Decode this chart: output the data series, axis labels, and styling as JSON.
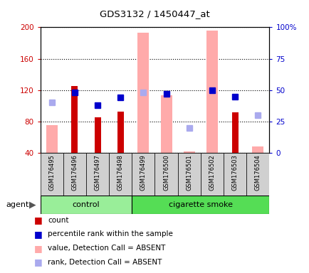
{
  "title": "GDS3132 / 1450447_at",
  "samples": [
    "GSM176495",
    "GSM176496",
    "GSM176497",
    "GSM176498",
    "GSM176499",
    "GSM176500",
    "GSM176501",
    "GSM176502",
    "GSM176503",
    "GSM176504"
  ],
  "count": [
    null,
    125,
    85,
    93,
    null,
    null,
    null,
    null,
    92,
    null
  ],
  "percentile_rank": [
    null,
    48,
    38,
    44,
    null,
    47,
    null,
    50,
    45,
    null
  ],
  "value_absent": [
    75,
    null,
    null,
    null,
    193,
    113,
    42,
    196,
    null,
    48
  ],
  "rank_absent": [
    40,
    null,
    null,
    null,
    48,
    null,
    20,
    null,
    null,
    30
  ],
  "ylim_left": [
    40,
    200
  ],
  "ylim_right": [
    0,
    100
  ],
  "yticks_left": [
    40,
    80,
    120,
    160,
    200
  ],
  "yticks_right": [
    0,
    25,
    50,
    75,
    100
  ],
  "yticklabels_right": [
    "0",
    "25",
    "50",
    "75",
    "100%"
  ],
  "left_color": "#cc0000",
  "right_color": "#0000cc",
  "absent_bar_color": "#ffaaaa",
  "absent_dot_color": "#aaaaee",
  "control_green": "#99ee99",
  "smoke_green": "#55dd55",
  "agent_label": "agent",
  "group_label_control": "control",
  "group_label_smoke": "cigarette smoke",
  "legend": [
    {
      "color": "#cc0000",
      "label": "count"
    },
    {
      "color": "#0000cc",
      "label": "percentile rank within the sample"
    },
    {
      "color": "#ffaaaa",
      "label": "value, Detection Call = ABSENT"
    },
    {
      "color": "#aaaaee",
      "label": "rank, Detection Call = ABSENT"
    }
  ],
  "n_control": 4,
  "n_smoke": 6
}
